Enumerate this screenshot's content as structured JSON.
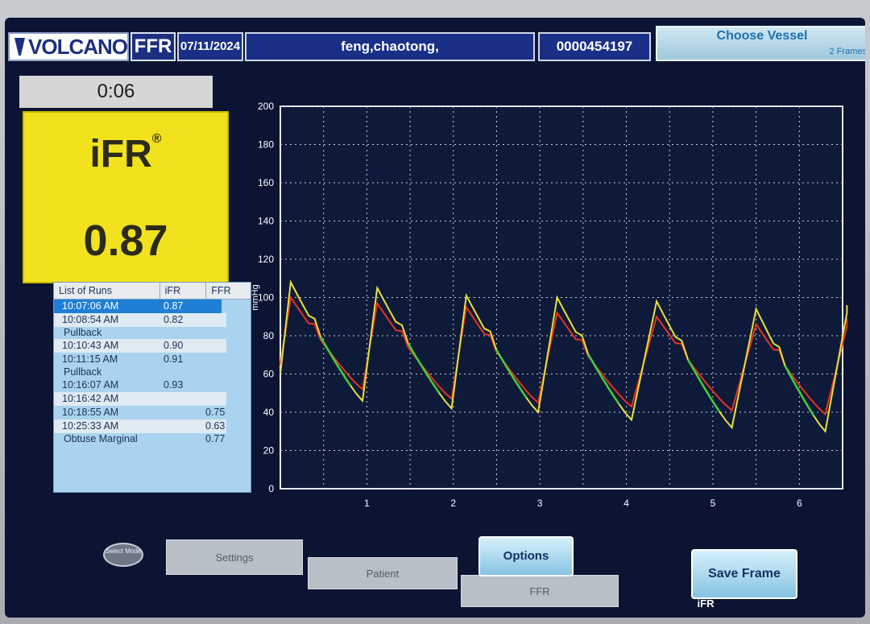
{
  "header": {
    "brand": "VOLCANO",
    "mode_badge": "FFR",
    "date": "07/11/2024",
    "patient_name": "feng,chaotong,",
    "patient_id": "0000454197",
    "choose_vessel_label": "Choose Vessel",
    "frames_label": "2 Frames"
  },
  "left_panel": {
    "timer": "0:06",
    "metric_label": "iFR",
    "metric_mark": "®",
    "metric_value": "0.87"
  },
  "runs": {
    "headers": {
      "name": "List of Runs",
      "ifr": "iFR",
      "ffr": "FFR"
    },
    "rows": [
      {
        "time": "10:07:06 AM",
        "ifr": "0.87",
        "ffr": "",
        "selected": true
      },
      {
        "time": "10:08:54 AM",
        "ifr": "0.82",
        "ffr": ""
      },
      {
        "label": "Pullback"
      },
      {
        "time": "10:10:43 AM",
        "ifr": "0.90",
        "ffr": ""
      },
      {
        "time": "10:11:15 AM",
        "ifr": "0.91",
        "ffr": ""
      },
      {
        "label": "Pullback"
      },
      {
        "time": "10:16:07 AM",
        "ifr": "0.93",
        "ffr": ""
      },
      {
        "time": "10:16:42 AM",
        "ifr": "",
        "ffr": ""
      },
      {
        "time": "10:18:55 AM",
        "ifr": "",
        "ffr": "0.75"
      },
      {
        "time": "10:25:33 AM",
        "ifr": "",
        "ffr": "0.63"
      },
      {
        "label": "Obtuse Marginal",
        "ffr": "0.77"
      }
    ]
  },
  "chart_data": {
    "type": "line",
    "ylabel": "mmHg",
    "xlabel": "",
    "ylim": [
      0,
      200
    ],
    "xlim": [
      0,
      6.5
    ],
    "y_ticks": [
      0,
      20,
      40,
      60,
      80,
      100,
      120,
      140,
      160,
      180,
      200
    ],
    "x_ticks": [
      1,
      2,
      3,
      4,
      5,
      6
    ],
    "grid": true,
    "series": [
      {
        "color": "#e8321f",
        "beats": [
          {
            "start": 0.0,
            "peak_t": 0.12,
            "peak": 100,
            "end": 0.95,
            "trough": 52
          },
          {
            "start": 0.95,
            "peak_t": 1.12,
            "peak": 97,
            "end": 1.98,
            "trough": 47
          },
          {
            "start": 1.98,
            "peak_t": 2.15,
            "peak": 95,
            "end": 2.98,
            "trough": 45
          },
          {
            "start": 2.98,
            "peak_t": 3.2,
            "peak": 92,
            "end": 4.06,
            "trough": 43
          },
          {
            "start": 4.06,
            "peak_t": 4.35,
            "peak": 90,
            "end": 5.22,
            "trough": 41
          },
          {
            "start": 5.22,
            "peak_t": 5.5,
            "peak": 86,
            "end": 6.3,
            "trough": 39
          },
          {
            "start": 6.3,
            "peak_t": 6.55,
            "peak": 85,
            "end": 6.55,
            "trough": 85
          }
        ]
      },
      {
        "color": "#e8e03a",
        "highlight_color": "#3fcf3a",
        "beats": [
          {
            "start": 0.0,
            "peak_t": 0.12,
            "peak": 108,
            "end": 0.95,
            "trough": 46
          },
          {
            "start": 0.95,
            "peak_t": 1.12,
            "peak": 105,
            "end": 1.98,
            "trough": 42
          },
          {
            "start": 1.98,
            "peak_t": 2.15,
            "peak": 101,
            "end": 2.98,
            "trough": 40
          },
          {
            "start": 2.98,
            "peak_t": 3.2,
            "peak": 100,
            "end": 4.06,
            "trough": 36
          },
          {
            "start": 4.06,
            "peak_t": 4.35,
            "peak": 98,
            "end": 5.22,
            "trough": 32
          },
          {
            "start": 5.22,
            "peak_t": 5.5,
            "peak": 94,
            "end": 6.3,
            "trough": 30
          },
          {
            "start": 6.3,
            "peak_t": 6.55,
            "peak": 92,
            "end": 6.55,
            "trough": 92
          }
        ]
      }
    ]
  },
  "bottom": {
    "mode_button": "Select Mode",
    "tabs": {
      "settings": "Settings",
      "patient": "Patient",
      "ffr": "FFR",
      "ifr": "iFR"
    },
    "options_label": "Options",
    "save_frame_label": "Save Frame"
  }
}
